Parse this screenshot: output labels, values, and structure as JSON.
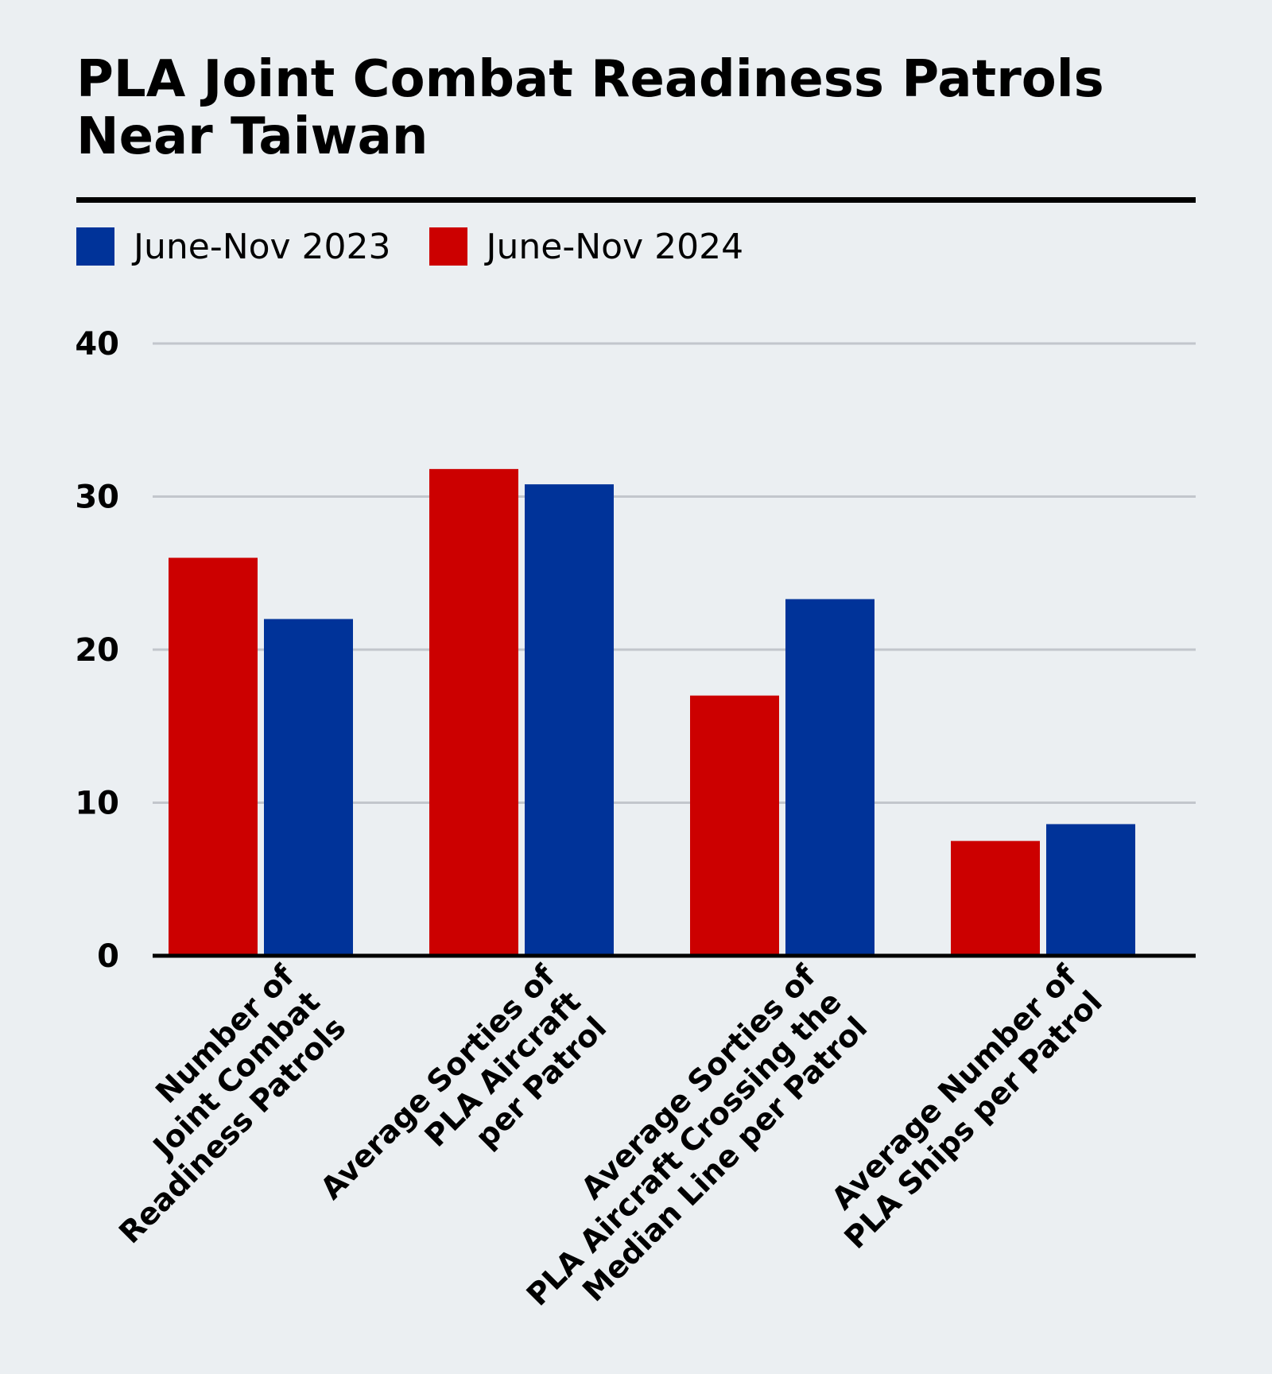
{
  "title": "PLA Joint Combat Readiness Patrols Near Taiwan",
  "colors": {
    "background": "#ebeff2",
    "series_2023": "#003399",
    "series_2024": "#cc0000",
    "gridline": "#c2c6cc",
    "axis": "#000000"
  },
  "legend": [
    {
      "name": "June-Nov 2023",
      "color": "#003399"
    },
    {
      "name": "June-Nov 2024",
      "color": "#cc0000"
    }
  ],
  "chart_data": {
    "type": "bar",
    "title": "PLA Joint Combat Readiness Patrols Near Taiwan",
    "xlabel": "",
    "ylabel": "",
    "ylim": [
      0,
      40
    ],
    "yticks": [
      0,
      10,
      20,
      30,
      40
    ],
    "grid": true,
    "legend_position": "top-left",
    "categories": [
      [
        "Number of",
        "Joint Combat",
        "Readiness Patrols"
      ],
      [
        "Average Sorties of",
        "PLA Aircraft",
        "per Patrol"
      ],
      [
        "Average Sorties of",
        "PLA Aircraft Crossing the",
        "Median Line per Patrol"
      ],
      [
        "Average Number of",
        "PLA Ships per Patrol"
      ]
    ],
    "series": [
      {
        "name": "June-Nov 2024",
        "color": "#cc0000",
        "values": [
          26,
          31.8,
          17,
          7.5
        ]
      },
      {
        "name": "June-Nov 2023",
        "color": "#003399",
        "values": [
          22,
          30.8,
          23.3,
          8.6
        ]
      }
    ]
  }
}
